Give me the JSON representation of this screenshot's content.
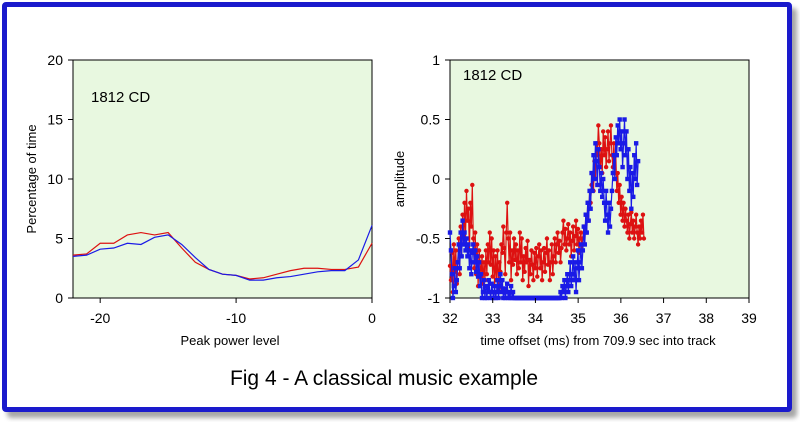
{
  "caption": "Fig 4 - A classical music example",
  "colors": {
    "frame": "#1a1acc",
    "plot_bg": "#e8f8e0",
    "red": "#dd1111",
    "blue": "#1a1ae6"
  },
  "chart_data": [
    {
      "type": "line",
      "inset_label": "1812 CD",
      "xlabel": "Peak power level",
      "ylabel": "Percentage of time",
      "xlim": [
        -22,
        0
      ],
      "ylim": [
        0,
        20
      ],
      "xticks": [
        -20,
        -10,
        0
      ],
      "yticks": [
        0,
        5,
        10,
        15,
        20
      ],
      "grid": false,
      "legend": "none",
      "series": [
        {
          "color": "red",
          "x": [
            -22,
            -21,
            -20,
            -19,
            -18,
            -17,
            -16,
            -15,
            -14,
            -13,
            -12,
            -11,
            -10,
            -9,
            -8,
            -7,
            -6,
            -5,
            -4,
            -3,
            -2,
            -1,
            0
          ],
          "y": [
            3.6,
            3.7,
            4.6,
            4.6,
            5.3,
            5.5,
            5.3,
            5.5,
            4.2,
            3.0,
            2.4,
            2.0,
            1.9,
            1.6,
            1.7,
            2.0,
            2.3,
            2.5,
            2.5,
            2.4,
            2.4,
            2.6,
            4.6
          ]
        },
        {
          "color": "blue",
          "x": [
            -22,
            -21,
            -20,
            -19,
            -18,
            -17,
            -16,
            -15,
            -14,
            -13,
            -12,
            -11,
            -10,
            -9,
            -8,
            -7,
            -6,
            -5,
            -4,
            -3,
            -2,
            -1,
            0
          ],
          "y": [
            3.5,
            3.6,
            4.1,
            4.2,
            4.6,
            4.5,
            5.1,
            5.3,
            4.5,
            3.4,
            2.4,
            2.0,
            1.9,
            1.5,
            1.5,
            1.7,
            1.8,
            2.0,
            2.2,
            2.3,
            2.3,
            3.2,
            6.1
          ]
        }
      ]
    },
    {
      "type": "line",
      "inset_label": "1812  CD",
      "xlabel": "time offset (ms) from 709.9 sec into track",
      "ylabel": "amplitude",
      "xlim": [
        32,
        39
      ],
      "ylim": [
        -1,
        1
      ],
      "xticks": [
        32,
        33,
        34,
        35,
        36,
        37,
        38,
        39
      ],
      "yticks": [
        -1,
        -0.5,
        0,
        0.5,
        1
      ],
      "grid": false,
      "legend": "none",
      "markers": true,
      "series": [
        {
          "color": "red",
          "x_start": 32,
          "x_step": 0.0227,
          "y": [
            -0.73,
            -0.85,
            -0.62,
            -0.95,
            -0.55,
            -0.78,
            -0.6,
            -0.88,
            -0.7,
            -0.5,
            -0.8,
            -0.4,
            -0.65,
            -0.3,
            -0.55,
            -0.2,
            -0.5,
            -0.1,
            -0.35,
            -0.25,
            -0.6,
            -0.2,
            -0.4,
            -0.05,
            -0.5,
            -0.75,
            -0.45,
            -0.8,
            -0.55,
            -0.9,
            -0.6,
            -0.7,
            -0.82,
            -0.65,
            -0.88,
            -0.7,
            -0.85,
            -0.6,
            -0.8,
            -0.55,
            -0.7,
            -0.45,
            -0.72,
            -0.5,
            -0.82,
            -0.6,
            -0.9,
            -0.65,
            -0.85,
            -0.6,
            -0.92,
            -0.7,
            -0.78,
            -0.55,
            -0.62,
            -0.4,
            -0.58,
            -0.8,
            -0.45,
            -0.2,
            -0.5,
            -0.7,
            -0.45,
            -0.85,
            -0.6,
            -0.72,
            -0.5,
            -0.68,
            -0.55,
            -0.8,
            -0.6,
            -0.75,
            -0.45,
            -0.7,
            -0.5,
            -0.85,
            -0.65,
            -0.78,
            -0.58,
            -0.7,
            -0.52,
            -0.9,
            -0.68,
            -0.8,
            -0.6,
            -0.72,
            -0.85,
            -0.62,
            -0.75,
            -0.58,
            -0.82,
            -0.65,
            -0.55,
            -0.75,
            -0.6,
            -0.85,
            -0.7,
            -0.58,
            -0.78,
            -0.62,
            -0.5,
            -0.72,
            -0.6,
            -0.85,
            -0.7,
            -0.55,
            -0.8,
            -0.65,
            -0.5,
            -0.7,
            -0.55,
            -0.45,
            -0.62,
            -0.52,
            -0.7,
            -0.58,
            -0.45,
            -0.35,
            -0.55,
            -0.42,
            -0.6,
            -0.5,
            -0.38,
            -0.55,
            -0.45,
            -0.65,
            -0.52,
            -0.4,
            -0.6,
            -0.48,
            -0.35,
            -0.55,
            -0.42,
            -0.62,
            -0.5,
            -0.45,
            -0.6,
            -0.5,
            -0.4,
            -0.55,
            -0.3,
            -0.45,
            -0.2,
            -0.35,
            -0.1,
            -0.2,
            -0.05,
            0.05,
            -0.1,
            0.15,
            0.0,
            0.3,
            0.2,
            0.45,
            0.3,
            0.1,
            0.25,
            0.05,
            0.4,
            0.2,
            0.35,
            0.1,
            0.25,
            0.4,
            0.15,
            0.3,
            0.45,
            0.2,
            0.1,
            0.3,
            0.05,
            0.2,
            -0.1,
            0.05,
            -0.2,
            -0.05,
            -0.3,
            -0.15,
            -0.35,
            -0.2,
            -0.4,
            -0.25,
            -0.35,
            -0.45,
            -0.3,
            -0.5,
            -0.38,
            -0.28,
            -0.45,
            -0.35,
            -0.5,
            -0.4,
            -0.3,
            -0.45,
            -0.55,
            -0.4,
            -0.5,
            -0.35,
            -0.45,
            -0.3,
            -0.5
          ]
        },
        {
          "color": "blue",
          "x_start": 32,
          "x_step": 0.0227,
          "y": [
            -0.45,
            -0.6,
            -0.8,
            -1.0,
            -0.9,
            -0.75,
            -0.95,
            -0.85,
            -0.7,
            -0.55,
            -0.75,
            -0.45,
            -0.65,
            -0.35,
            -0.55,
            -0.45,
            -0.6,
            -0.5,
            -0.65,
            -0.55,
            -0.75,
            -0.6,
            -0.8,
            -0.62,
            -0.55,
            -0.7,
            -0.6,
            -0.78,
            -0.65,
            -0.82,
            -0.7,
            -0.9,
            -0.8,
            -1.0,
            -0.95,
            -0.85,
            -1.0,
            -0.9,
            -1.0,
            -0.92,
            -0.85,
            -0.95,
            -1.0,
            -0.88,
            -0.95,
            -1.0,
            -0.9,
            -1.0,
            -0.95,
            -0.85,
            -1.0,
            -0.9,
            -0.8,
            -0.95,
            -0.85,
            -1.0,
            -0.92,
            -1.0,
            -0.95,
            -0.88,
            -1.0,
            -0.95,
            -1.0,
            -0.9,
            -1.0,
            -0.95,
            -1.0,
            -1.0,
            -1.0,
            -1.0,
            -1.0,
            -1.0,
            -1.0,
            -1.0,
            -1.0,
            -1.0,
            -1.0,
            -1.0,
            -1.0,
            -1.0,
            -1.0,
            -1.0,
            -1.0,
            -1.0,
            -1.0,
            -1.0,
            -1.0,
            -1.0,
            -1.0,
            -1.0,
            -1.0,
            -1.0,
            -1.0,
            -1.0,
            -1.0,
            -1.0,
            -1.0,
            -1.0,
            -1.0,
            -1.0,
            -1.0,
            -1.0,
            -1.0,
            -1.0,
            -1.0,
            -1.0,
            -1.0,
            -1.0,
            -1.0,
            -1.0,
            -1.0,
            -1.0,
            -1.0,
            -1.0,
            -0.95,
            -1.0,
            -0.9,
            -0.95,
            -0.85,
            -1.0,
            -0.9,
            -0.8,
            -0.95,
            -0.85,
            -0.7,
            -0.9,
            -0.8,
            -0.65,
            -0.85,
            -0.7,
            -0.95,
            -0.75,
            -0.6,
            -0.85,
            -0.7,
            -0.55,
            -0.75,
            -0.6,
            -0.4,
            -0.55,
            -0.3,
            -0.45,
            -0.2,
            -0.35,
            -0.1,
            -0.25,
            0.05,
            -0.1,
            0.2,
            0.0,
            0.3,
            0.15,
            -0.05,
            0.25,
            0.1,
            -0.1,
            0.05,
            -0.15,
            0.0,
            -0.2,
            -0.35,
            -0.1,
            -0.3,
            -0.45,
            -0.2,
            -0.4,
            -0.25,
            -0.1,
            0.05,
            0.2,
            0.0,
            0.35,
            0.2,
            0.45,
            0.3,
            0.5,
            0.25,
            0.4,
            0.1,
            0.3,
            0.5,
            0.2,
            0.4,
            0.0,
            0.25,
            -0.1,
            0.1,
            -0.25,
            0.05,
            -0.15,
            0.2,
            0.0,
            0.3,
            -0.05,
            0.15
          ]
        }
      ]
    }
  ]
}
